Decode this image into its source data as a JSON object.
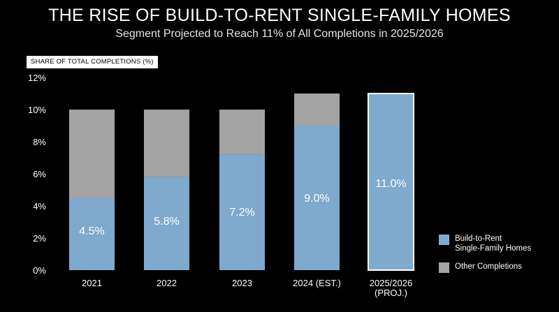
{
  "title": "THE RISE OF BUILD-TO-RENT SINGLE-FAMILY HOMES",
  "subtitle": "Segment Projected to Reach 11% of All Completions in 2025/2026",
  "colors": {
    "build_to_rent": "#7fa9cd",
    "other": "#a3a3a3",
    "projected_outline": "#ffffff",
    "background": "#000000"
  },
  "chart_data": {
    "type": "bar",
    "stacked": true,
    "title": "THE RISE OF BUILD-TO-RENT SINGLE-FAMILY HOMES",
    "subtitle": "Segment Projected to Reach 11% of All Completions in 2025/2026",
    "ylabel": "SHARE OF TOTAL COMPLETIONS (%)",
    "xlabel": "",
    "ylim": [
      0,
      12
    ],
    "yticks": [
      "0%",
      "2%",
      "4%",
      "6%",
      "8%",
      "10%",
      "12%"
    ],
    "ytick_values": [
      0,
      2,
      4,
      6,
      8,
      10,
      12
    ],
    "categories": [
      "2021",
      "2022",
      "2023",
      "2024 (EST.)",
      "2025/2026\n(PROJ.)"
    ],
    "series": [
      {
        "name": "Build-to-Rent\nSingle-Family Homes",
        "values": [
          4.5,
          5.8,
          7.2,
          9.0,
          11.0
        ]
      },
      {
        "name": "Other Completions",
        "values": [
          5.5,
          4.2,
          2.8,
          2.0,
          0
        ]
      }
    ],
    "data_labels": [
      "4.5%",
      "5.8%",
      "7.2%",
      "9.0%",
      "11.0%"
    ],
    "legend_position": "bottom-right",
    "grid": false
  }
}
